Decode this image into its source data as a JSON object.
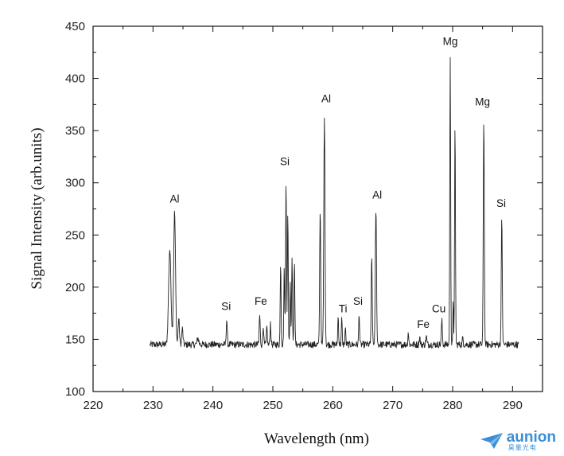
{
  "chart_data": {
    "type": "line",
    "title": "",
    "xlabel": "Wavelength (nm)",
    "ylabel": "Signal Intensity (arb.units)",
    "xlim": [
      220,
      295
    ],
    "ylim": [
      100,
      450
    ],
    "xticks": [
      220,
      230,
      240,
      250,
      260,
      270,
      280,
      290
    ],
    "yticks": [
      100,
      150,
      200,
      250,
      300,
      350,
      400,
      450
    ],
    "grid": false,
    "baseline": 145,
    "x_range": [
      229.5,
      291
    ],
    "peaks": [
      {
        "x": 232.8,
        "y": 236,
        "w": 0.28
      },
      {
        "x": 233.6,
        "y": 272,
        "w": 0.22
      },
      {
        "x": 234.3,
        "y": 170,
        "w": 0.15
      },
      {
        "x": 234.9,
        "y": 160,
        "w": 0.15
      },
      {
        "x": 237.5,
        "y": 151,
        "w": 0.2
      },
      {
        "x": 242.3,
        "y": 169,
        "w": 0.12
      },
      {
        "x": 247.8,
        "y": 173,
        "w": 0.12
      },
      {
        "x": 248.4,
        "y": 164,
        "w": 0.1
      },
      {
        "x": 249.0,
        "y": 162,
        "w": 0.1
      },
      {
        "x": 249.6,
        "y": 166,
        "w": 0.1
      },
      {
        "x": 251.3,
        "y": 225,
        "w": 0.1
      },
      {
        "x": 251.9,
        "y": 218,
        "w": 0.1
      },
      {
        "x": 252.2,
        "y": 306,
        "w": 0.1
      },
      {
        "x": 252.5,
        "y": 272,
        "w": 0.1
      },
      {
        "x": 252.9,
        "y": 206,
        "w": 0.1
      },
      {
        "x": 253.2,
        "y": 231,
        "w": 0.1
      },
      {
        "x": 253.6,
        "y": 228,
        "w": 0.1
      },
      {
        "x": 257.9,
        "y": 276,
        "w": 0.12
      },
      {
        "x": 258.6,
        "y": 365,
        "w": 0.14
      },
      {
        "x": 260.9,
        "y": 172,
        "w": 0.1
      },
      {
        "x": 261.5,
        "y": 170,
        "w": 0.1
      },
      {
        "x": 262.1,
        "y": 161,
        "w": 0.1
      },
      {
        "x": 264.4,
        "y": 175,
        "w": 0.1
      },
      {
        "x": 266.5,
        "y": 228,
        "w": 0.12
      },
      {
        "x": 267.2,
        "y": 275,
        "w": 0.14
      },
      {
        "x": 272.6,
        "y": 157,
        "w": 0.1
      },
      {
        "x": 274.5,
        "y": 152,
        "w": 0.12
      },
      {
        "x": 275.6,
        "y": 153,
        "w": 0.12
      },
      {
        "x": 278.2,
        "y": 168,
        "w": 0.12
      },
      {
        "x": 279.6,
        "y": 422,
        "w": 0.1
      },
      {
        "x": 280.1,
        "y": 190,
        "w": 0.08
      },
      {
        "x": 280.4,
        "y": 356,
        "w": 0.1
      },
      {
        "x": 281.7,
        "y": 152,
        "w": 0.1
      },
      {
        "x": 285.2,
        "y": 362,
        "w": 0.12
      },
      {
        "x": 288.2,
        "y": 265,
        "w": 0.12
      }
    ],
    "annotations": [
      {
        "text": "Al",
        "x": 233.6,
        "y": 281
      },
      {
        "text": "Si",
        "x": 242.2,
        "y": 178
      },
      {
        "text": "Fe",
        "x": 248.0,
        "y": 183
      },
      {
        "text": "Si",
        "x": 252.0,
        "y": 317
      },
      {
        "text": "Al",
        "x": 258.9,
        "y": 377
      },
      {
        "text": "Ti",
        "x": 261.7,
        "y": 176
      },
      {
        "text": "Si",
        "x": 264.2,
        "y": 183
      },
      {
        "text": "Al",
        "x": 267.4,
        "y": 285
      },
      {
        "text": "Fe",
        "x": 275.1,
        "y": 161
      },
      {
        "text": "Cu",
        "x": 277.7,
        "y": 176
      },
      {
        "text": "Mg",
        "x": 279.6,
        "y": 432
      },
      {
        "text": "Mg",
        "x": 285.0,
        "y": 374
      },
      {
        "text": "Si",
        "x": 288.1,
        "y": 277
      }
    ]
  },
  "logo": {
    "name": "aunion",
    "subtitle": "昊量光电",
    "color": "#3a8fd6"
  }
}
